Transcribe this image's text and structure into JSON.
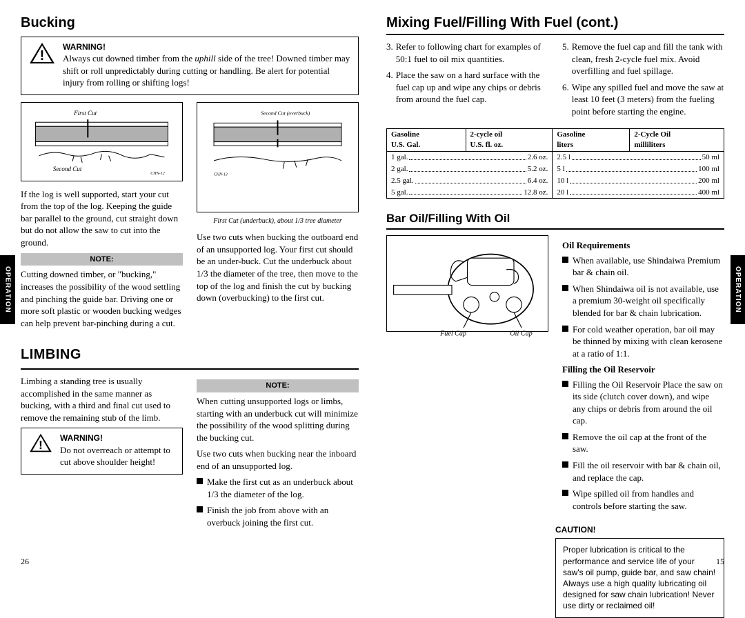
{
  "operation_label": "OPERATION",
  "left": {
    "h1": "Bucking",
    "warning1": {
      "title": "WARNING!",
      "body_html": "Always cut downed timber from the <i>uphill</i> side of the tree! Downed timber may shift or roll unpredictably during cutting or handling. Be alert for potential injury from rolling or shifting logs!"
    },
    "fig1_labels": {
      "first": "First Cut",
      "second": "Second Cut",
      "code": "CHN-12"
    },
    "para1": "If the log is well supported, start your cut from the top of the log. Keeping the guide bar parallel to the ground, cut straight down but do not allow the saw to cut into the ground.",
    "note_label": "NOTE:",
    "note1": "Cutting downed timber, or \"bucking,\" increases the possibility of the wood settling and pinching the guide bar. Driving one or more soft plastic or wooden bucking wedges can help prevent bar-pinching during a cut.",
    "fig2_labels": {
      "overbuck": "Second Cut (overbuck)",
      "underbuck": "First Cut (underbuck), about 1/3 tree diameter",
      "code": "CHN-13"
    },
    "para2": "Use two cuts when bucking the outboard end of an unsupported log. Your first cut should be an under-buck. Cut the underbuck about 1/3 the diameter of the tree, then move to the top of the log and finish the cut by bucking down (overbucking) to the first cut.",
    "h1b": "Limbing",
    "para3": "Limbing a standing tree is usually accomplished in the same manner as bucking, with a third and final cut used to remove the remaining stub of the limb.",
    "warning2": {
      "title": "WARNING!",
      "body": "Do not overreach or attempt to cut above shoulder height!"
    },
    "note2": "When cutting unsupported logs or limbs, starting with an underbuck cut will minimize the possibility of the wood splitting during the bucking cut.",
    "para4": "Use two cuts when bucking near the inboard end of an unsupported log.",
    "bullets": [
      "Make the first cut as an underbuck about 1/3 the diameter of the log.",
      "Finish the job from above with an overbuck joining the first cut."
    ],
    "pagenum": "26"
  },
  "right": {
    "h2": "Mixing Fuel/Filling With Fuel (cont.)",
    "steps_left": [
      {
        "n": "3.",
        "t": "Refer to following chart for examples of 50:1 fuel to oil mix quantities."
      },
      {
        "n": "4.",
        "t": "Place the saw on a hard surface with the fuel cap up and wipe any chips or debris from around the fuel cap."
      }
    ],
    "steps_right": [
      {
        "n": "5.",
        "t": "Remove the fuel cap and fill the tank with clean, fresh 2-cycle fuel mix. Avoid overfilling and fuel spillage."
      },
      {
        "n": "6.",
        "t": "Wipe any spilled fuel and move the saw at least 10 feet (3 meters) from the fueling point before starting the engine."
      }
    ],
    "table": {
      "h": [
        "Gasoline",
        "2-cycle oil",
        "Gasoline",
        "2-Cycle Oil"
      ],
      "sub": [
        "U.S. Gal.",
        "U.S. fl. oz.",
        "liters",
        "milliliters"
      ],
      "rows": [
        [
          "1 gal.",
          "2.6 oz.",
          "2.5 l",
          "50 ml"
        ],
        [
          "2 gal.",
          "5.2 oz.",
          "5 l",
          "100 ml"
        ],
        [
          "2.5 gal.",
          "6.4 oz.",
          "10 l",
          "200 ml"
        ],
        [
          "5 gal.",
          "12.8 oz.",
          "20 l",
          "400 ml"
        ]
      ]
    },
    "h3": "Bar Oil/Filling With Oil",
    "chainsaw_labels": {
      "fuel": "Fuel Cap",
      "oil": "Oil Cap"
    },
    "oil_req_head": "Oil Requirements",
    "oil_req": [
      "When available, use Shindaiwa Premium bar & chain oil.",
      "When Shindaiwa oil is not available, use a premium 30-weight oil specifically blended for bar & chain lubrication.",
      "For cold weather operation, bar oil may be thinned by mixing with clean kerosene at a ratio of 1:1."
    ],
    "fill_head": "Filling the Oil Reservoir",
    "fill": [
      "Filling the Oil Reservoir Place the saw on its side (clutch cover down), and wipe any chips or debris from around the oil cap.",
      "Remove the oil cap at the front of the saw.",
      "Fill the oil reservoir with bar & chain oil, and replace the cap.",
      "Wipe spilled oil from handles and controls before starting the saw."
    ],
    "caution_title": "CAUTION!",
    "caution": "Proper lubrication is critical to the performance and service life of your saw's oil pump, guide bar, and saw chain! Always use a high quality lubricating oil designed for saw chain lubrication! Never use dirty or reclaimed oil!",
    "pagenum": "15"
  }
}
